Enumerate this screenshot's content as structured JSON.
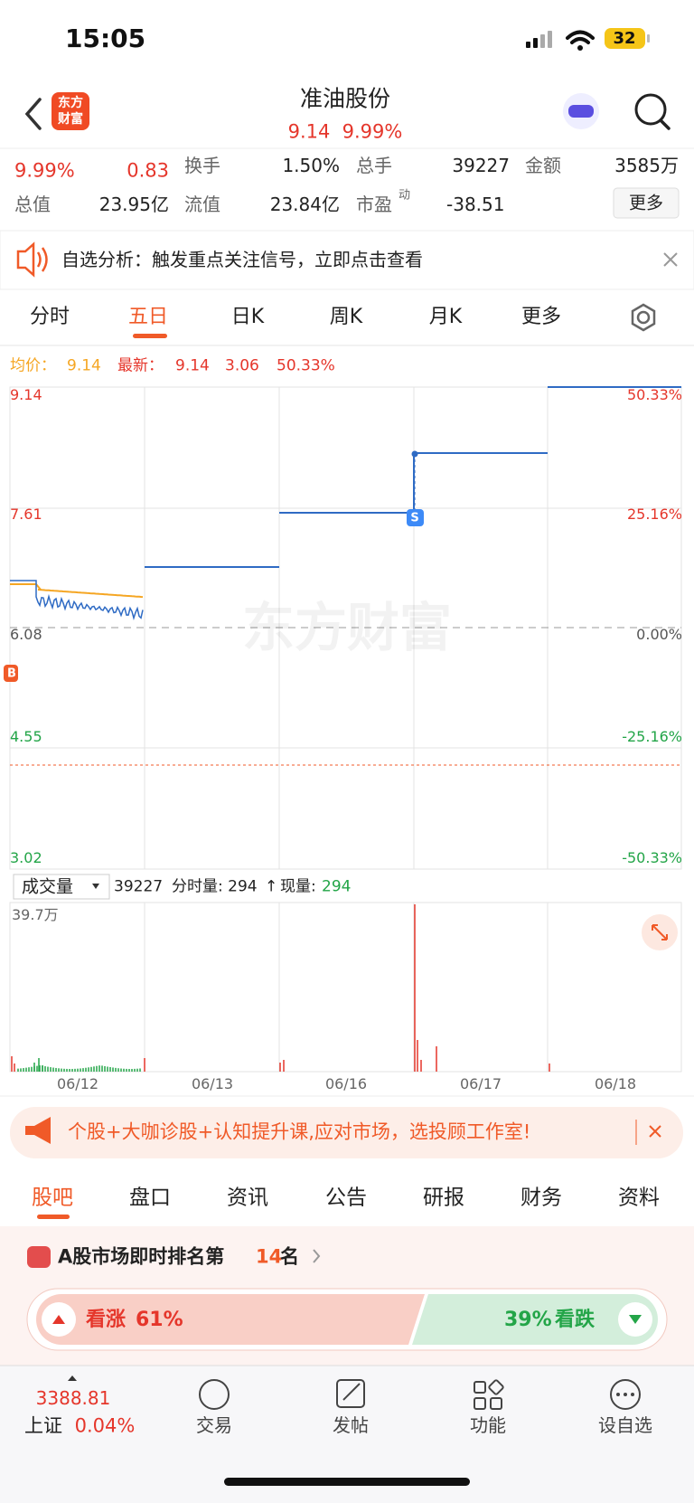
{
  "status_bar": {
    "time": "15:05",
    "battery": "32"
  },
  "header": {
    "logo": [
      "东方",
      "财富"
    ],
    "title": "准油股份",
    "price": "9.14",
    "change": "9.99%"
  },
  "stats": {
    "rows": [
      [
        "9.99%",
        "0.83",
        "换手",
        "1.50%",
        "总手",
        "39227",
        "金额",
        "3585万"
      ],
      [
        "总值",
        "23.95亿",
        "流值",
        "23.84亿",
        "市盈",
        "动",
        "-38.51"
      ]
    ],
    "more_button": "更多"
  },
  "banner": {
    "text": "自选分析：触发重点关注信号，立即点击查看"
  },
  "tabs": [
    "分时",
    "五日",
    "日K",
    "周K",
    "月K",
    "更多"
  ],
  "chart": {
    "legend": {
      "avg_label": "均价：",
      "avg": "9.14",
      "latest_label": "最新：",
      "latest": "9.14",
      "change": "3.06",
      "change_pct": "50.33%"
    },
    "left_axis": [
      "9.14",
      "7.61",
      "6.08",
      "4.55",
      "3.02"
    ],
    "right_axis": [
      "50.33%",
      "25.16%",
      "0.00%",
      "-25.16%",
      "-50.33%"
    ],
    "watermark": "东方财富",
    "markers": {
      "sell": "S",
      "buy": "B"
    },
    "volume": {
      "selector": "成交量",
      "total": "39227",
      "minute_label": "分时量: 294",
      "arrow": "↑",
      "current_label": "现量:",
      "current": "294",
      "max_label": "39.7万"
    },
    "dates": [
      "06/12",
      "06/13",
      "06/16",
      "06/17",
      "06/18"
    ]
  },
  "ad": {
    "text": "个股+大咖诊股+认知提升课,应对市场，选投顾工作室!"
  },
  "sub_tabs": [
    "股吧",
    "盘口",
    "资讯",
    "公告",
    "研报",
    "财务",
    "资料"
  ],
  "ranking": {
    "prefix": "A股市场即时排名第",
    "rank": "14",
    "suffix": "名"
  },
  "sentiment": {
    "up_label": "看涨",
    "up": "61%",
    "down": "39%",
    "down_label": "看跌"
  },
  "bottom_bar": {
    "index_value": "3388.81",
    "index_name": "上证",
    "index_change": "0.04%",
    "items": [
      "交易",
      "发帖",
      "功能",
      "设自选"
    ]
  }
}
